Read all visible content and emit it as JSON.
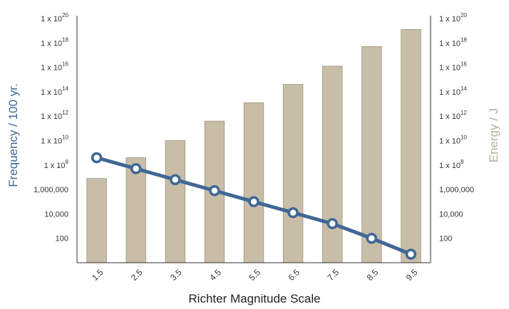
{
  "chart_data": {
    "type": "bar+line",
    "categories": [
      "1.5",
      "2.5",
      "3.5",
      "4.5",
      "5.5",
      "6.5",
      "7.5",
      "8.5",
      "9.5"
    ],
    "xlabel": "Richter Magnitude Scale",
    "ylabel_left": "Frequency / 100 yr.",
    "ylabel_right": "Energy / J",
    "y_ticks_left": [
      {
        "exp": 2,
        "label": "100"
      },
      {
        "exp": 4,
        "label": "10,000"
      },
      {
        "exp": 6,
        "label": "1,000,000"
      },
      {
        "exp": 8,
        "base": "1 x 10",
        "sup": "8"
      },
      {
        "exp": 10,
        "base": "1 x 10",
        "sup": "10"
      },
      {
        "exp": 12,
        "base": "1 x 10",
        "sup": "12"
      },
      {
        "exp": 14,
        "base": "1 x 10",
        "sup": "14"
      },
      {
        "exp": 16,
        "base": "1 x 10",
        "sup": "16"
      },
      {
        "exp": 18,
        "base": "1 x 10",
        "sup": "18"
      },
      {
        "exp": 20,
        "base": "1 x 10",
        "sup": "20"
      }
    ],
    "y_ticks_right": [
      {
        "exp": 2,
        "label": "100"
      },
      {
        "exp": 4,
        "label": "10,000"
      },
      {
        "exp": 6,
        "label": "1,000,000"
      },
      {
        "exp": 8,
        "base": "1 x 10",
        "sup": "8"
      },
      {
        "exp": 10,
        "base": "1 x 10",
        "sup": "10"
      },
      {
        "exp": 12,
        "base": "1 x 10",
        "sup": "12"
      },
      {
        "exp": 14,
        "base": "1 x 10",
        "sup": "14"
      },
      {
        "exp": 16,
        "base": "1 x 10",
        "sup": "16"
      },
      {
        "exp": 18,
        "base": "1 x 10",
        "sup": "18"
      },
      {
        "exp": 20,
        "base": "1 x 10",
        "sup": "20"
      }
    ],
    "ylim_log10": [
      0,
      20
    ],
    "y_scale": "log",
    "energy_log10": [
      6.9,
      8.6,
      10.0,
      11.6,
      13.1,
      14.6,
      16.1,
      17.7,
      19.1
    ],
    "frequency_log10": [
      8.6,
      7.7,
      6.8,
      5.9,
      5.0,
      4.1,
      3.2,
      2.0,
      0.7
    ],
    "colors": {
      "bar_fill": "#c8bda7",
      "bar_stroke": "#9f947e",
      "line": "#3f6796",
      "marker_fill": "#ffffff",
      "left_axis_label": "#3f6796",
      "right_axis_label": "#b7ae9d",
      "axis": "#333333"
    },
    "grid": false
  }
}
